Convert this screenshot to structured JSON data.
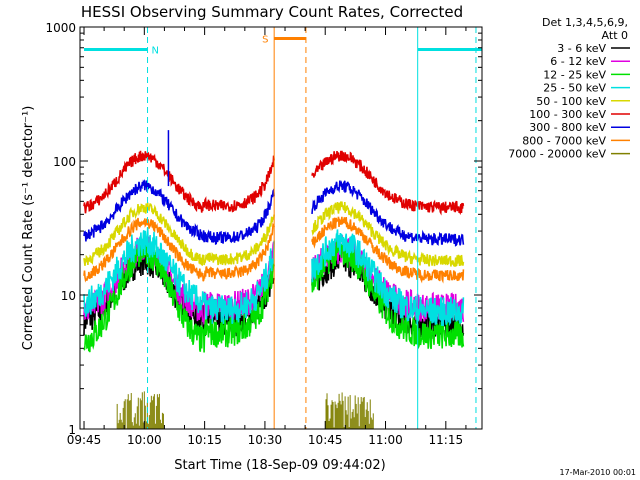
{
  "chart_data": {
    "type": "line",
    "title": "HESSI Observing Summary Count Rates, Corrected",
    "xlabel": "Start Time (18-Sep-09 09:44:02)",
    "ylabel": "Corrected Count Rate (s⁻¹ detector⁻¹)",
    "y_scale": "log",
    "ylim": [
      1,
      1000
    ],
    "xlim_minutes": [
      -1,
      99
    ],
    "x_tick_labels": [
      "09:45",
      "10:00",
      "10:15",
      "10:30",
      "10:45",
      "11:00",
      "11:15"
    ],
    "x_tick_minutes": [
      0,
      15,
      30,
      45,
      60,
      75,
      90
    ],
    "y_tick_labels": [
      "1",
      "10",
      "100",
      "1000"
    ],
    "y_tick_values": [
      1,
      10,
      100,
      1000
    ],
    "legend_header": [
      "Det 1,3,4,5,6,9,",
      "Att 0"
    ],
    "legend_position": "right",
    "footer_date": "17-Mar-2010 00:01",
    "segments": [
      [
        0,
        47.3
      ],
      [
        56.7,
        94.5
      ]
    ],
    "series": [
      {
        "name": "3 - 6 keV",
        "color": "#000000",
        "level_max": 18,
        "level_night": 6,
        "level_edge": 6
      },
      {
        "name": "6 - 12 keV",
        "color": "#e000e0",
        "level_max": 22,
        "level_night": 8,
        "level_edge": 7
      },
      {
        "name": "12 - 25 keV",
        "color": "#00e000",
        "level_max": 21,
        "level_night": 5,
        "level_edge": 4
      },
      {
        "name": "25 - 50 keV",
        "color": "#00e0e0",
        "level_max": 25,
        "level_night": 7.5,
        "level_edge": 8
      },
      {
        "name": "50 - 100 keV",
        "color": "#d8d800",
        "level_max": 45,
        "level_night": 18,
        "level_edge": 17
      },
      {
        "name": "100 - 300 keV",
        "color": "#e00000",
        "level_max": 110,
        "level_night": 45,
        "level_edge": 42
      },
      {
        "name": "300 - 800 keV",
        "color": "#0000e0",
        "level_max": 65,
        "level_night": 26,
        "level_edge": 26
      },
      {
        "name": "800 - 7000 keV",
        "color": "#ff8000",
        "level_max": 35,
        "level_night": 14,
        "level_edge": 13
      },
      {
        "name": "7000 - 20000 keV",
        "color": "#808000",
        "level_max": 2.3,
        "level_night": 1,
        "level_edge": 1
      }
    ],
    "flags": [
      {
        "label": "N",
        "color": "#00e0e0",
        "bars": [
          [
            0,
            15.8
          ],
          [
            83,
            99
          ]
        ],
        "level": 680,
        "edge_lines": [
          15.8,
          83,
          97.5
        ]
      },
      {
        "label": "S",
        "color": "#ff8000",
        "bars": [
          [
            47.3,
            55.2
          ]
        ],
        "level": 820,
        "edge_lines": [
          47.3,
          55.2
        ]
      }
    ]
  }
}
